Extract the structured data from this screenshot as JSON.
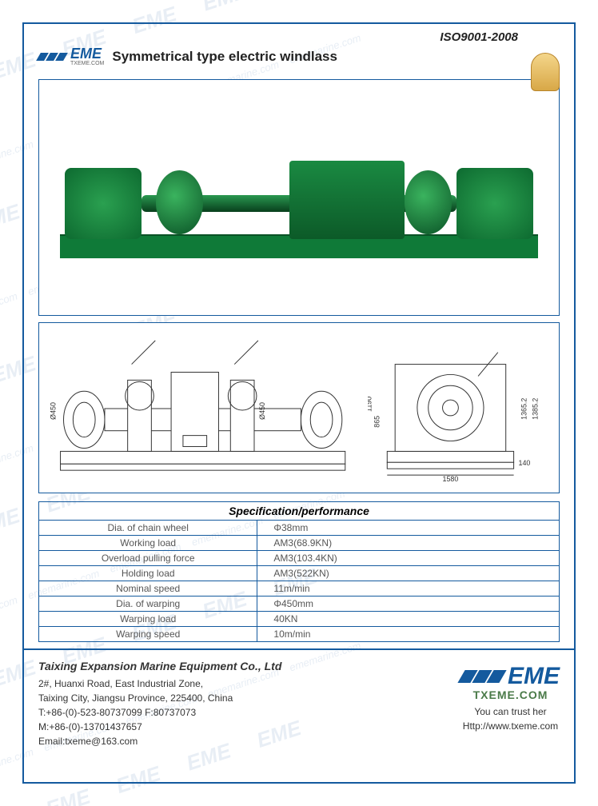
{
  "header": {
    "iso": "ISO9001-2008",
    "logo_text": "EME",
    "logo_sub": "TXEME.COM",
    "title": "Symmetrical type electric windlass"
  },
  "photo": {
    "machine_color": "#137a37",
    "base_color": "#0f7a38",
    "background": "#ffffff"
  },
  "drawing": {
    "front_dims": {
      "diameter_left": "Ø450",
      "diameter_mid": "Ø450"
    },
    "side_dims": {
      "width": "1580",
      "height1": "865",
      "height2": "1190",
      "right_h1": "1365.2",
      "right_h2": "1385.2",
      "base_h": "140"
    }
  },
  "spec": {
    "title": "Specification/performance",
    "rows": [
      {
        "label": "Dia. of chain wheel",
        "value": "Φ38mm"
      },
      {
        "label": "Working load",
        "value": "AM3(68.9KN)"
      },
      {
        "label": "Overload pulling force",
        "value": "AM3(103.4KN)"
      },
      {
        "label": "Holding load",
        "value": "AM3(522KN)"
      },
      {
        "label": "Nominal speed",
        "value": "11m/min"
      },
      {
        "label": "Dia. of warping",
        "value": "Φ450mm"
      },
      {
        "label": "Warping load",
        "value": "40KN"
      },
      {
        "label": "Warping speed",
        "value": "10m/min"
      }
    ]
  },
  "footer": {
    "company": "Taixing Expansion Marine Equipment Co., Ltd",
    "addr1": "2#, Huanxi Road, East Industrial Zone,",
    "addr2": "Taixing City, Jiangsu Province, 225400, China",
    "tel": "T:+86-(0)-523-80737099    F:80737073",
    "mob": "M:+86-(0)-13701437657",
    "email": "Email:txeme@163.com",
    "domain": "TXEME.COM",
    "trust": "You can trust her",
    "url": "Http://www.txeme.com"
  },
  "watermark": {
    "text": "EME",
    "sub": "ememarine.com",
    "color": "#e8eef5"
  },
  "colors": {
    "frame": "#145a9e",
    "text": "#222222"
  }
}
